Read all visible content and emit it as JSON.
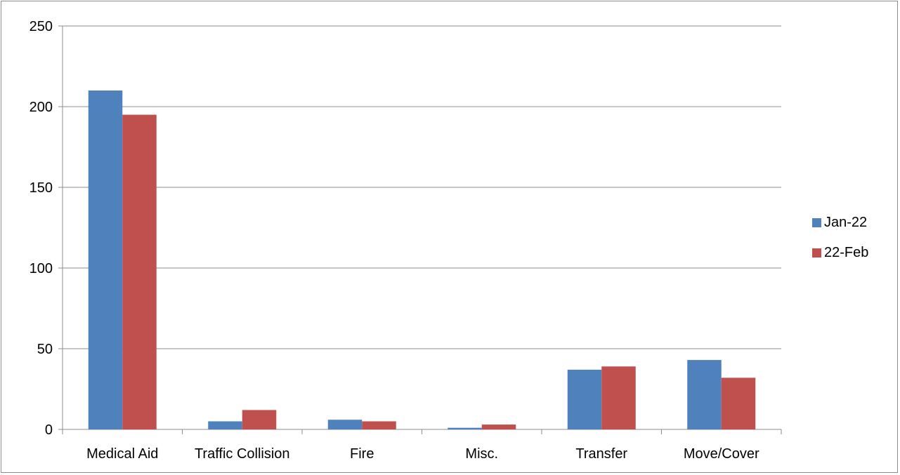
{
  "chart_data": {
    "type": "bar",
    "title": "",
    "xlabel": "",
    "ylabel": "",
    "categories": [
      "Medical Aid",
      "Traffic Collision",
      "Fire",
      "Misc.",
      "Transfer",
      "Move/Cover"
    ],
    "series": [
      {
        "name": "Jan-22",
        "color": "#4f81bd",
        "values": [
          210,
          5,
          6,
          1,
          37,
          43
        ]
      },
      {
        "name": "22-Feb",
        "color": "#c0504d",
        "values": [
          195,
          12,
          5,
          3,
          39,
          32
        ]
      }
    ],
    "ylim": [
      0,
      250
    ],
    "yticks": [
      0,
      50,
      100,
      150,
      200,
      250
    ],
    "grid": true,
    "legend_position": "right"
  }
}
